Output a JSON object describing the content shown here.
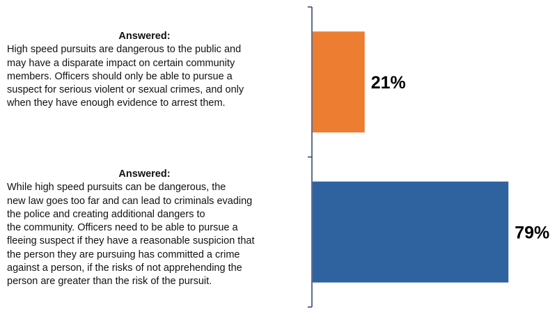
{
  "chart_data": {
    "type": "bar",
    "orientation": "horizontal",
    "categories": [
      {
        "heading": "Answered:",
        "lines": [
          "High speed pursuits are dangerous to the public and",
          "may have a disparate impact on certain community",
          "members. Officers should only be able to pursue a",
          "suspect for serious violent or sexual crimes, and only",
          "when they have enough evidence to arrest them."
        ]
      },
      {
        "heading": "Answered:",
        "lines": [
          "While high speed pursuits can be dangerous, the",
          "new law goes too far and can lead to criminals evading",
          "the police and creating additional dangers to",
          "the community. Officers need to be able to pursue a",
          "fleeing suspect if they have a reasonable suspicion that",
          "the person they are pursuing has committed a crime",
          "against a person, if the risks of not apprehending the",
          "person are greater than the risk of the pursuit."
        ]
      }
    ],
    "values": [
      21,
      79
    ],
    "data_labels": [
      "21%",
      "79%"
    ],
    "colors": [
      "#ED7D31",
      "#2E63A0"
    ],
    "axis_color": "#2F3D6B",
    "xlim": [
      0,
      100
    ],
    "legend": "none",
    "grid": false
  }
}
